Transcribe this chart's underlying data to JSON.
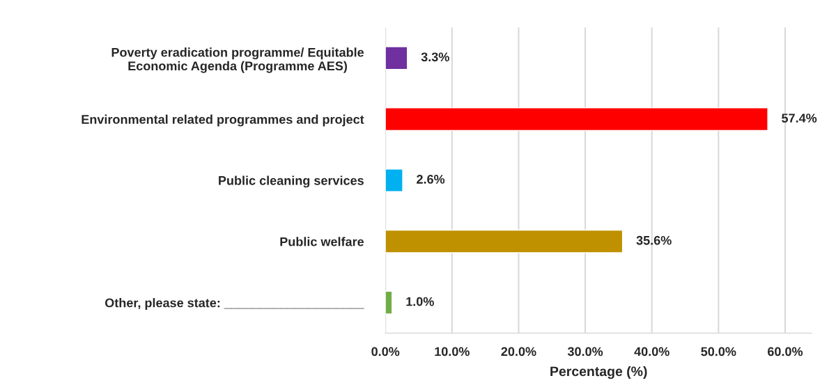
{
  "chart_data": {
    "type": "bar",
    "orientation": "horizontal",
    "xlabel": "Percentage (%)",
    "categories": [
      "Poverty eradication programme/ Equitable\nEconomic Agenda (Programme AES)",
      "Environmental related programmes and project",
      "Public cleaning services",
      "Public welfare",
      "Other, please state: ____________________"
    ],
    "values": [
      3.3,
      57.4,
      2.6,
      35.6,
      1.0
    ],
    "colors": [
      "#7030a0",
      "#ff0000",
      "#00b0f0",
      "#bf9000",
      "#70ad47"
    ],
    "value_labels": [
      "3.3%",
      "57.4%",
      "2.6%",
      "35.6%",
      "1.0%"
    ],
    "xlim": [
      0,
      64
    ],
    "xticks": [
      {
        "value": 0,
        "label": "0.0%"
      },
      {
        "value": 10,
        "label": "10.0%"
      },
      {
        "value": 20,
        "label": "20.0%"
      },
      {
        "value": 30,
        "label": "30.0%"
      },
      {
        "value": 40,
        "label": "40.0%"
      },
      {
        "value": 50,
        "label": "50.0%"
      },
      {
        "value": 60,
        "label": "60.0%"
      }
    ],
    "grid": "x",
    "legend": false
  }
}
